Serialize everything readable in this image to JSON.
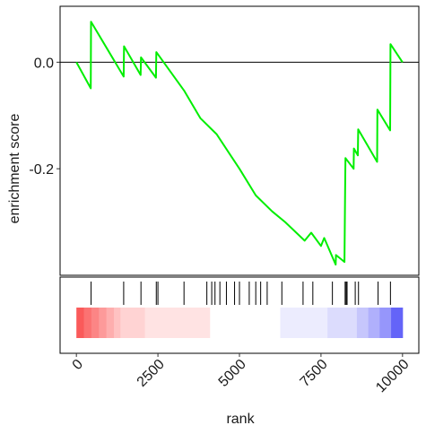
{
  "chart_data": {
    "type": "line",
    "xlabel": "rank",
    "ylabel": "enrichment score",
    "xlim": [
      -500,
      10500
    ],
    "ylim": [
      -0.4,
      0.105
    ],
    "x_ticks": [
      0,
      2500,
      5000,
      7500,
      10000
    ],
    "x_tick_labels": [
      "0",
      "2500",
      "5000",
      "7500",
      "10000"
    ],
    "y_ticks": [
      0,
      -0.2
    ],
    "y_tick_labels": [
      "0.0",
      "-0.2"
    ],
    "zero_line": 0,
    "grid": false,
    "line_color": "#00ee00",
    "series": [
      {
        "points": [
          [
            0,
            0.0
          ],
          [
            440,
            -0.049
          ],
          [
            450,
            0.076
          ],
          [
            1450,
            -0.027
          ],
          [
            1460,
            0.03
          ],
          [
            1970,
            -0.024
          ],
          [
            1980,
            0.009
          ],
          [
            2440,
            -0.029
          ],
          [
            2450,
            0.019
          ],
          [
            3300,
            -0.053
          ],
          [
            3800,
            -0.105
          ],
          [
            4300,
            -0.135
          ],
          [
            5000,
            -0.2
          ],
          [
            5500,
            -0.25
          ],
          [
            6000,
            -0.28
          ],
          [
            6400,
            -0.3
          ],
          [
            7000,
            -0.335
          ],
          [
            7200,
            -0.32
          ],
          [
            7500,
            -0.345
          ],
          [
            7600,
            -0.33
          ],
          [
            7950,
            -0.38
          ],
          [
            7960,
            -0.362
          ],
          [
            8220,
            -0.375
          ],
          [
            8240,
            -0.243
          ],
          [
            8250,
            -0.18
          ],
          [
            8500,
            -0.2
          ],
          [
            8510,
            -0.162
          ],
          [
            8630,
            -0.175
          ],
          [
            8640,
            -0.126
          ],
          [
            9220,
            -0.187
          ],
          [
            9230,
            -0.089
          ],
          [
            9620,
            -0.128
          ],
          [
            9630,
            0.034
          ],
          [
            10000,
            0.0
          ]
        ]
      }
    ],
    "hit_ranks": [
      450,
      1450,
      1980,
      2450,
      2500,
      3300,
      4000,
      4150,
      4250,
      4400,
      4600,
      4850,
      5000,
      5300,
      5500,
      5650,
      5850,
      6300,
      6950,
      7250,
      7850,
      8240,
      8270,
      8300,
      8550,
      8650,
      9250,
      9630
    ],
    "rank_heatmap": {
      "colors": [
        "#fa5a5a",
        "#fb7272",
        "#fc8585",
        "#fd9a9a",
        "#feaeae",
        "#ffc2c2",
        "#ffd3d3",
        "#ffe3e3",
        "#ffffff",
        "#ececfe",
        "#dcdcfd",
        "#c6c6fc",
        "#b0b0fc",
        "#9696fb",
        "#6464f8"
      ],
      "bounds": [
        0,
        230,
        460,
        690,
        920,
        1150,
        1350,
        2100,
        4100,
        6250,
        7700,
        8600,
        8950,
        9300,
        9650,
        10000
      ]
    }
  }
}
